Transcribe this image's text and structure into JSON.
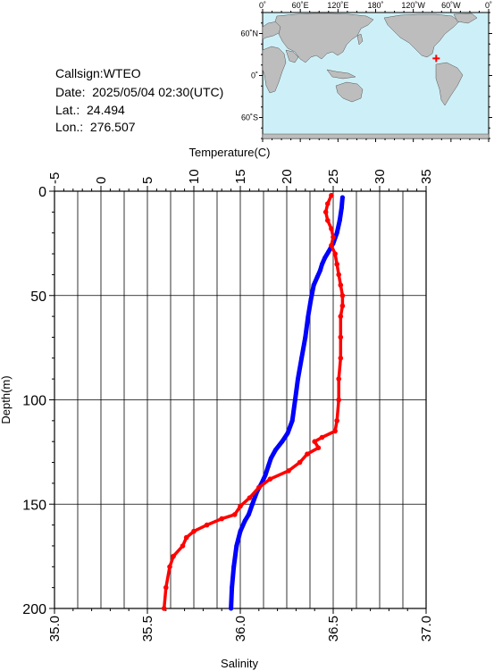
{
  "header": {
    "callsign": "Callsign:WTEO",
    "date": "Date:  2025/05/04 02:30(UTC)",
    "lat": "Lat.:  24.494",
    "lon": "Lon.:  276.507"
  },
  "map": {
    "top_ticks": [
      "0˚",
      "60˚E",
      "120˚E",
      "180˚",
      "120˚W",
      "60˚W",
      "0˚"
    ],
    "left_ticks": [
      "60˚N",
      "0˚",
      "60˚S"
    ],
    "ocean_color": "#cdf0f8",
    "land_color": "#bdbdbd",
    "station_marker": {
      "lat": 24.494,
      "lon": 276.507,
      "color": "#ff0000"
    }
  },
  "chart_data": {
    "type": "line",
    "ylabel": "Depth(m)",
    "y_ticks": [
      "0",
      "50",
      "100",
      "150",
      "200"
    ],
    "ylim": [
      0,
      200
    ],
    "y_inverted": true,
    "top_axis": {
      "label": "Temperature(C)",
      "range": [
        -5,
        35
      ],
      "ticks": [
        "-5",
        "0",
        "5",
        "10",
        "15",
        "20",
        "25",
        "30",
        "35"
      ]
    },
    "bottom_axis": {
      "label": "Salinity",
      "range": [
        35.0,
        37.0
      ],
      "ticks": [
        "35.0",
        "35.5",
        "36.0",
        "36.5",
        "37.0"
      ]
    },
    "grid": true,
    "series": [
      {
        "variable": "Temperature",
        "color": "#0000ff",
        "axis": "top",
        "points": [
          [
            26.0,
            3
          ],
          [
            25.9,
            8
          ],
          [
            25.7,
            14
          ],
          [
            25.4,
            20
          ],
          [
            25.0,
            25
          ],
          [
            24.5,
            29
          ],
          [
            24.1,
            32
          ],
          [
            23.8,
            35
          ],
          [
            23.6,
            38
          ],
          [
            23.3,
            41
          ],
          [
            22.9,
            45
          ],
          [
            22.6,
            52
          ],
          [
            22.3,
            60
          ],
          [
            22.0,
            70
          ],
          [
            21.6,
            80
          ],
          [
            21.2,
            90
          ],
          [
            20.9,
            100
          ],
          [
            20.6,
            110
          ],
          [
            20.1,
            116
          ],
          [
            19.5,
            120
          ],
          [
            18.8,
            124
          ],
          [
            18.3,
            128
          ],
          [
            18.0,
            132
          ],
          [
            17.7,
            136
          ],
          [
            17.3,
            140
          ],
          [
            16.8,
            144
          ],
          [
            16.3,
            150
          ],
          [
            15.9,
            155
          ],
          [
            15.5,
            158
          ],
          [
            15.0,
            163
          ],
          [
            14.6,
            170
          ],
          [
            14.3,
            180
          ],
          [
            14.1,
            190
          ],
          [
            14.0,
            200
          ]
        ]
      },
      {
        "variable": "Salinity",
        "color": "#ff0000",
        "axis": "bottom",
        "points": [
          [
            36.49,
            2
          ],
          [
            36.47,
            6
          ],
          [
            36.46,
            10
          ],
          [
            36.47,
            14
          ],
          [
            36.49,
            18
          ],
          [
            36.5,
            22
          ],
          [
            36.49,
            26
          ],
          [
            36.51,
            30
          ],
          [
            36.52,
            35
          ],
          [
            36.53,
            40
          ],
          [
            36.54,
            45
          ],
          [
            36.55,
            50
          ],
          [
            36.55,
            55
          ],
          [
            36.54,
            60
          ],
          [
            36.54,
            70
          ],
          [
            36.54,
            80
          ],
          [
            36.53,
            90
          ],
          [
            36.53,
            100
          ],
          [
            36.52,
            110
          ],
          [
            36.51,
            115
          ],
          [
            36.44,
            118
          ],
          [
            36.4,
            120
          ],
          [
            36.42,
            123
          ],
          [
            36.36,
            126
          ],
          [
            36.32,
            130
          ],
          [
            36.26,
            134
          ],
          [
            36.16,
            138
          ],
          [
            36.1,
            142
          ],
          [
            36.05,
            147
          ],
          [
            36.0,
            151
          ],
          [
            35.97,
            155
          ],
          [
            35.9,
            157
          ],
          [
            35.82,
            160
          ],
          [
            35.75,
            163
          ],
          [
            35.71,
            166
          ],
          [
            35.69,
            170
          ],
          [
            35.64,
            175
          ],
          [
            35.62,
            180
          ],
          [
            35.6,
            190
          ],
          [
            35.59,
            200
          ]
        ]
      }
    ]
  }
}
